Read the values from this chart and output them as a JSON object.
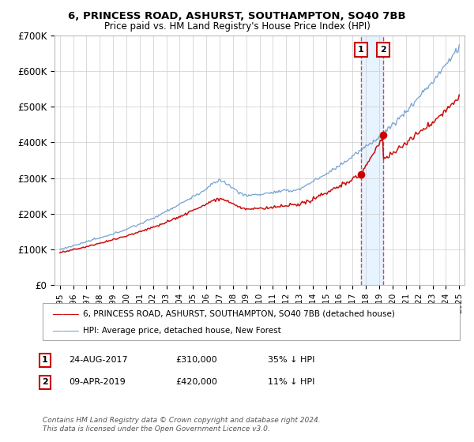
{
  "title": "6, PRINCESS ROAD, ASHURST, SOUTHAMPTON, SO40 7BB",
  "subtitle": "Price paid vs. HM Land Registry's House Price Index (HPI)",
  "legend_label_red": "6, PRINCESS ROAD, ASHURST, SOUTHAMPTON, SO40 7BB (detached house)",
  "legend_label_blue": "HPI: Average price, detached house, New Forest",
  "annotation1_date": "24-AUG-2017",
  "annotation1_price": "£310,000",
  "annotation1_pct": "35% ↓ HPI",
  "annotation2_date": "09-APR-2019",
  "annotation2_price": "£420,000",
  "annotation2_pct": "11% ↓ HPI",
  "footer": "Contains HM Land Registry data © Crown copyright and database right 2024.\nThis data is licensed under the Open Government Licence v3.0.",
  "ylim": [
    0,
    700000
  ],
  "yticks": [
    0,
    100000,
    200000,
    300000,
    400000,
    500000,
    600000,
    700000
  ],
  "ytick_labels": [
    "£0",
    "£100K",
    "£200K",
    "£300K",
    "£400K",
    "£500K",
    "£600K",
    "£700K"
  ],
  "red_color": "#cc0000",
  "blue_color": "#6699cc",
  "vline_color": "#dd4444",
  "shade_color": "#ddeeff",
  "background_color": "#ffffff",
  "grid_color": "#cccccc",
  "x1_year": 2017.622,
  "x2_year": 2019.272,
  "y1_price": 310000,
  "y2_price": 420000,
  "xmin": 1995,
  "xmax": 2025
}
